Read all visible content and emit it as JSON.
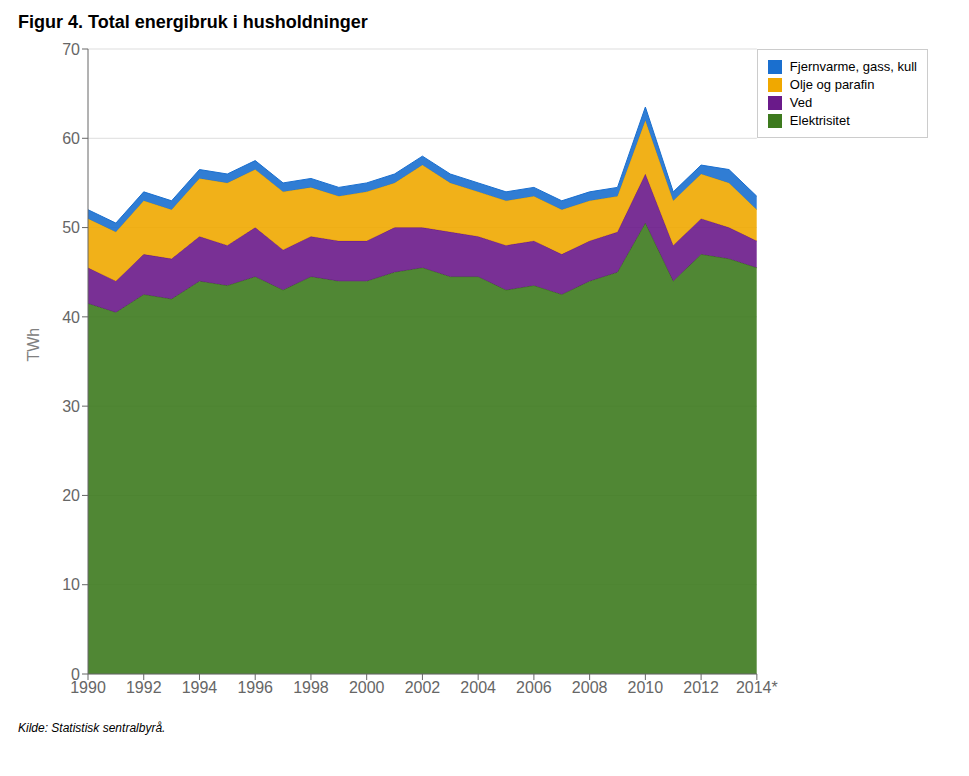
{
  "chart_data": {
    "type": "area",
    "stacked": true,
    "title": "Figur 4. Total energibruk i husholdninger",
    "ylabel": "TWh",
    "source": "Kilde: Statistisk sentralbyrå.",
    "x": [
      1990,
      1991,
      1992,
      1993,
      1994,
      1995,
      1996,
      1997,
      1998,
      1999,
      2000,
      2001,
      2002,
      2003,
      2004,
      2005,
      2006,
      2007,
      2008,
      2009,
      2010,
      2011,
      2012,
      2013,
      2014
    ],
    "series": [
      {
        "name": "Elektrisitet",
        "color": "#3d7a1e",
        "values": [
          41.5,
          40.5,
          42.5,
          42.0,
          44.0,
          43.5,
          44.5,
          43.0,
          44.5,
          44.0,
          44.0,
          45.0,
          45.5,
          44.5,
          44.5,
          43.0,
          43.5,
          42.5,
          44.0,
          45.0,
          50.5,
          44.0,
          47.0,
          46.5,
          45.5
        ]
      },
      {
        "name": "Ved",
        "color": "#6a1a8a",
        "values": [
          4.0,
          3.5,
          4.5,
          4.5,
          5.0,
          4.5,
          5.5,
          4.5,
          4.5,
          4.5,
          4.5,
          5.0,
          4.5,
          5.0,
          4.5,
          5.0,
          5.0,
          4.5,
          4.5,
          4.5,
          5.5,
          4.0,
          4.0,
          3.5,
          3.0
        ]
      },
      {
        "name": "Olje og parafin",
        "color": "#f0a800",
        "values": [
          5.5,
          5.5,
          6.0,
          5.5,
          6.5,
          7.0,
          6.5,
          6.5,
          5.5,
          5.0,
          5.5,
          5.0,
          7.0,
          5.5,
          5.0,
          5.0,
          5.0,
          5.0,
          4.5,
          4.0,
          6.0,
          5.0,
          5.0,
          5.0,
          3.5
        ]
      },
      {
        "name": "Fjernvarme, gass, kull",
        "color": "#1a6fcf",
        "values": [
          1.0,
          1.0,
          1.0,
          1.0,
          1.0,
          1.0,
          1.0,
          1.0,
          1.0,
          1.0,
          1.0,
          1.0,
          1.0,
          1.0,
          1.0,
          1.0,
          1.0,
          1.0,
          1.0,
          1.0,
          1.5,
          1.0,
          1.0,
          1.5,
          1.5
        ]
      }
    ],
    "xlim": [
      1990,
      2014
    ],
    "xticks": [
      1990,
      1992,
      1994,
      1996,
      1998,
      2000,
      2002,
      2004,
      2006,
      2008,
      2010,
      2012,
      {
        "value": 2014,
        "label": "2014*"
      }
    ],
    "ylim": [
      0,
      70
    ],
    "yticks": [
      0,
      10,
      20,
      30,
      40,
      50,
      60,
      70
    ],
    "grid": true,
    "legend": "upper right"
  }
}
